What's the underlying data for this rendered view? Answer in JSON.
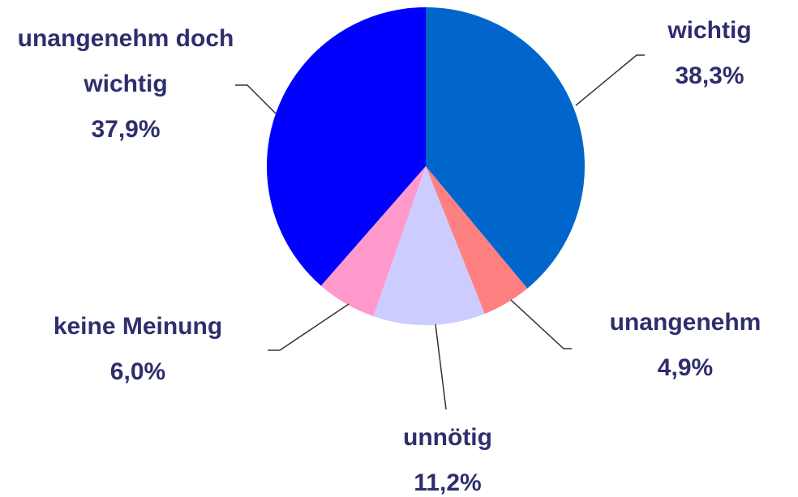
{
  "chart_data": {
    "type": "pie",
    "categories": [
      "wichtig",
      "unangenehm",
      "unnötig",
      "keine Meinung",
      "unangenehm doch wichtig"
    ],
    "values": [
      38.3,
      4.9,
      11.2,
      6.0,
      37.9
    ],
    "value_labels": [
      "38,3%",
      "4,9%",
      "11,2%",
      "6,0%",
      "37,9%"
    ],
    "colors": [
      "#0066cc",
      "#ff8080",
      "#ccccff",
      "#ff99cc",
      "#0000ff"
    ]
  }
}
